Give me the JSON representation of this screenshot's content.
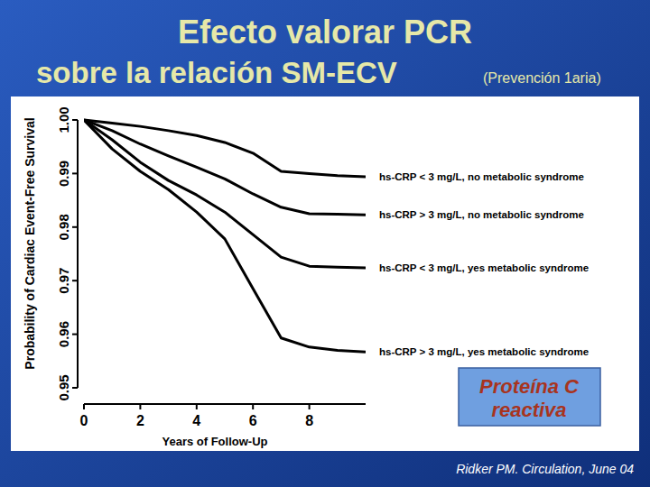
{
  "chart_data": {
    "type": "line",
    "title": "Efecto valorar PCR",
    "subtitle": "sobre la relación SM-ECV",
    "subtitle_note": "(Prevención 1aria)",
    "x_label": "Years of Follow-Up",
    "y_label": "Probability of Cardiac Event-Free Survival",
    "annotation": "Proteína C reactiva",
    "source": "Ridker PM. Circulation, June 04",
    "x": [
      0,
      1,
      2,
      3,
      4,
      5,
      6,
      7,
      8,
      9,
      10
    ],
    "series": [
      {
        "name": "hs-CRP < 3 mg/L, no metabolic syndrome",
        "color": "#000000",
        "values": [
          1.0,
          0.9994,
          0.9988,
          0.998,
          0.9971,
          0.9958,
          0.9938,
          0.9904,
          0.99,
          0.9896,
          0.9894
        ]
      },
      {
        "name": "hs-CRP > 3 mg/L, no metabolic syndrome",
        "color": "#000000",
        "values": [
          1.0,
          0.998,
          0.9955,
          0.9933,
          0.9912,
          0.989,
          0.9862,
          0.9837,
          0.9825,
          0.9824,
          0.9823
        ]
      },
      {
        "name": "hs-CRP < 3 mg/L, yes metabolic syndrome",
        "color": "#000000",
        "values": [
          1.0,
          0.9963,
          0.9921,
          0.9887,
          0.986,
          0.9828,
          0.9786,
          0.9744,
          0.9727,
          0.9725,
          0.9724
        ]
      },
      {
        "name": "hs-CRP > 3 mg/L, yes metabolic syndrome",
        "color": "#000000",
        "values": [
          1.0,
          0.9946,
          0.9904,
          0.987,
          0.9828,
          0.9778,
          0.9685,
          0.9593,
          0.9576,
          0.957,
          0.9567
        ]
      }
    ],
    "xlim": [
      0,
      10
    ],
    "xticks": [
      0,
      2,
      4,
      6,
      8
    ],
    "ylim": [
      0.95,
      1.0
    ],
    "yticks": [
      0.95,
      0.96,
      0.97,
      0.98,
      0.99,
      {
        "value": 1.0,
        "label": "1.00"
      }
    ],
    "grid": false,
    "line_style": "solid"
  }
}
